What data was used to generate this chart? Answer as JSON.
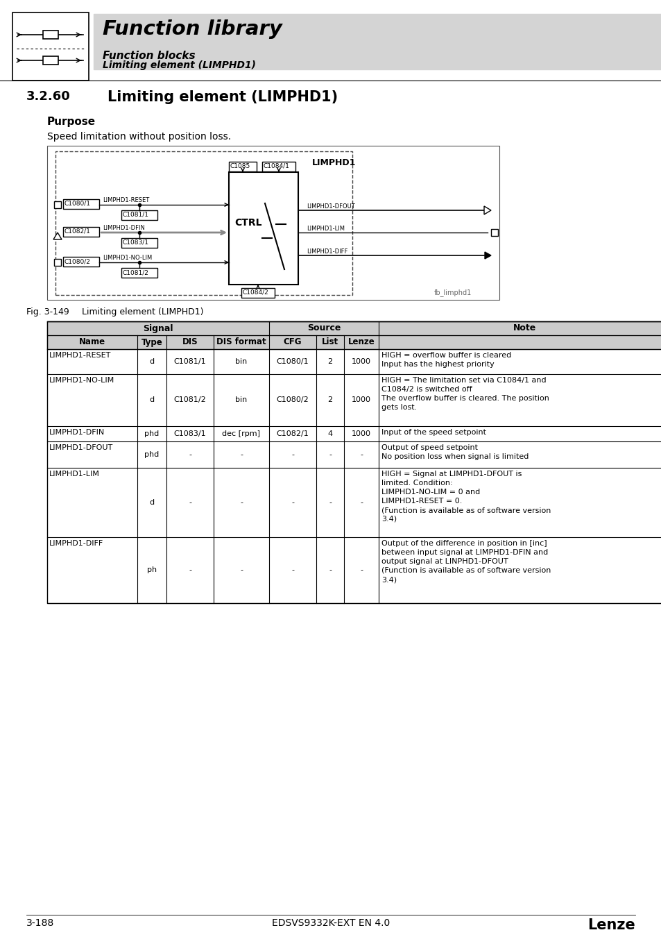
{
  "page_bg": "#ffffff",
  "header_bg": "#d4d4d4",
  "header_title": "Function library",
  "header_sub1": "Function blocks",
  "header_sub2": "Limiting element (LIMPHD1)",
  "section_number": "3.2.60",
  "section_title": "Limiting element (LIMPHD1)",
  "purpose_label": "Purpose",
  "purpose_text": "Speed limitation without position loss.",
  "fig_label": "Fig. 3-149",
  "fig_caption": "Limiting element (LIMPHD1)",
  "fig_watermark": "fb_limphd1",
  "table_rows": [
    [
      "LIMPHD1-RESET",
      "d",
      "C1081/1",
      "bin",
      "C1080/1",
      "2",
      "1000",
      "HIGH = overflow buffer is cleared\nInput has the highest priority"
    ],
    [
      "LIMPHD1-NO-LIM",
      "d",
      "C1081/2",
      "bin",
      "C1080/2",
      "2",
      "1000",
      "HIGH = The limitation set via C1084/1 and\nC1084/2 is switched off\nThe overflow buffer is cleared. The position\ngets lost."
    ],
    [
      "LIMPHD1-DFIN",
      "phd",
      "C1083/1",
      "dec [rpm]",
      "C1082/1",
      "4",
      "1000",
      "Input of the speed setpoint"
    ],
    [
      "LIMPHD1-DFOUT",
      "phd",
      "-",
      "-",
      "-",
      "-",
      "-",
      "Output of speed setpoint\nNo position loss when signal is limited"
    ],
    [
      "LIMPHD1-LIM",
      "d",
      "-",
      "-",
      "-",
      "-",
      "-",
      "HIGH = Signal at LIMPHD1-DFOUT is\nlimited. Condition:\nLIMPHD1-NO-LIM = 0 and\nLIMPHD1-RESET = 0.\n(Function is available as of software version\n3.4)"
    ],
    [
      "LIMPHD1-DIFF",
      "ph",
      "-",
      "-",
      "-",
      "-",
      "-",
      "Output of the difference in position in [inc]\nbetween input signal at LIMPHD1-DFIN and\noutput signal at LINPHD1-DFOUT\n(Function is available as of software version\n3.4)"
    ]
  ],
  "footer_left": "3-188",
  "footer_center": "EDSVS9332K-EXT EN 4.0",
  "footer_right": "Lenze"
}
